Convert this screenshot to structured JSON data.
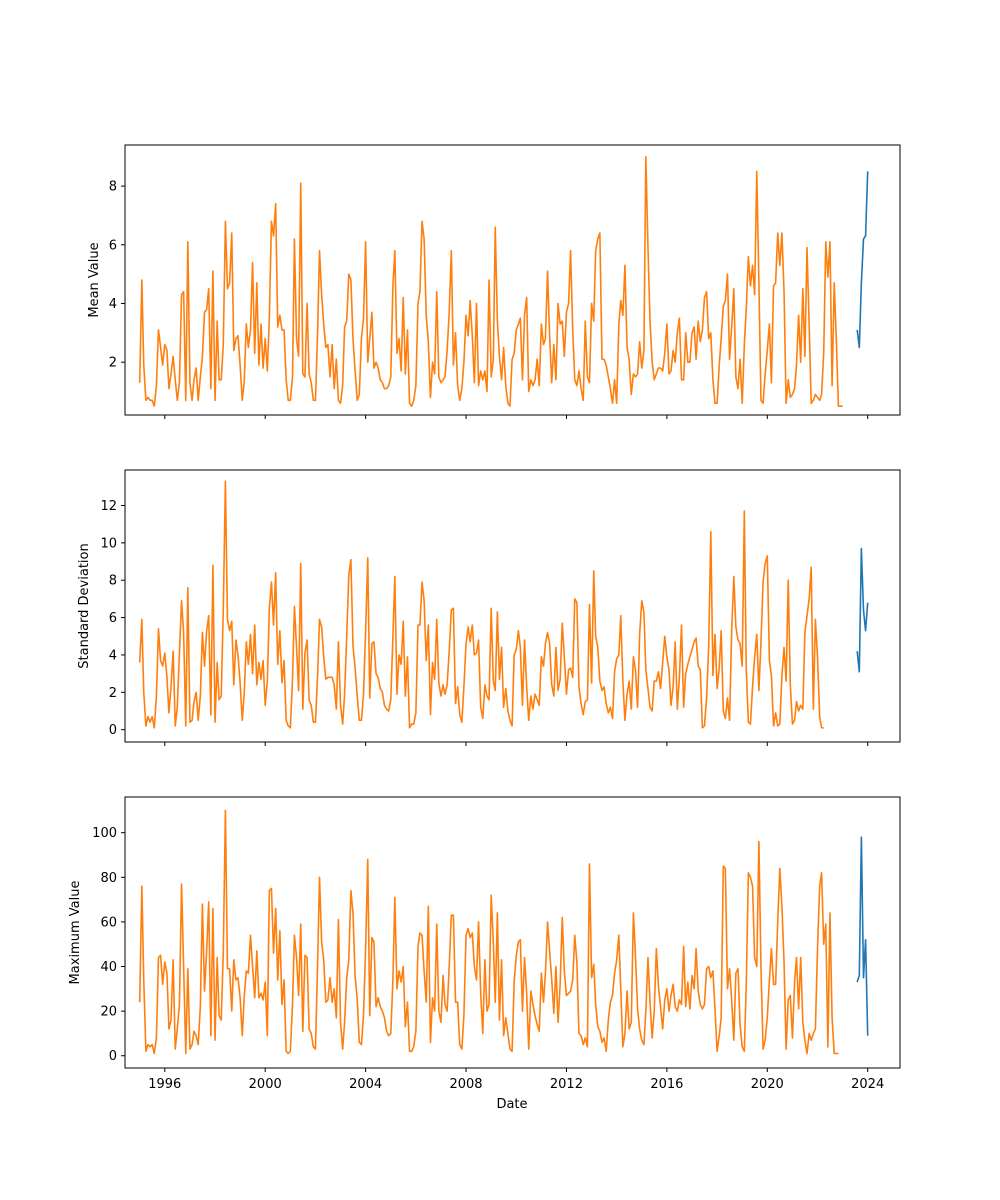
{
  "chart_data": {
    "type": "line",
    "shared_x_label": "Date",
    "x_axis": {
      "type": "date",
      "range": [
        "1994-06-01",
        "2025-04-15"
      ],
      "ticks": [
        "1996",
        "2000",
        "2004",
        "2008",
        "2012",
        "2016",
        "2020",
        "2024"
      ]
    },
    "colors": {
      "history": "#ff7f0e",
      "forecast": "#1f77b4"
    },
    "grid": false,
    "history_start": "1995-01",
    "history_frequency": "monthly",
    "forecast_dates": [
      "2023-08",
      "2023-09",
      "2023-10",
      "2023-11",
      "2023-12",
      "2024-01"
    ],
    "panels": [
      {
        "ylabel": "Mean Value",
        "ylim": [
          0.2,
          9.4
        ],
        "yticks": [
          "2",
          "4",
          "6",
          "8"
        ],
        "history_values": [
          1.3,
          4.8,
          1.9,
          0.7,
          0.8,
          0.7,
          0.7,
          0.5,
          1.2,
          3.1,
          2.5,
          1.9,
          2.6,
          2.4,
          1.1,
          1.6,
          2.2,
          1.4,
          0.7,
          1.3,
          4.3,
          4.4,
          0.7,
          6.1,
          1.3,
          0.7,
          1.4,
          1.8,
          0.7,
          1.5,
          2.2,
          3.7,
          3.8,
          4.5,
          1.1,
          5.1,
          0.7,
          3.4,
          1.4,
          1.4,
          2.6,
          6.8,
          4.5,
          4.7,
          6.4,
          2.4,
          2.8,
          2.9,
          1.9,
          0.7,
          1.3,
          3.3,
          2.5,
          3.1,
          5.4,
          2.3,
          4.7,
          1.9,
          3.3,
          1.8,
          2.8,
          1.7,
          3.5,
          6.8,
          6.3,
          7.4,
          3.2,
          3.6,
          3.1,
          3.1,
          1.4,
          0.7,
          0.7,
          1.5,
          6.2,
          2.8,
          2.2,
          8.1,
          1.6,
          1.5,
          4.0,
          1.6,
          1.3,
          0.7,
          0.7,
          3.0,
          5.8,
          4.3,
          3.3,
          2.5,
          2.6,
          1.5,
          2.6,
          1.1,
          2.1,
          0.7,
          0.6,
          1.2,
          3.2,
          3.4,
          5.0,
          4.8,
          2.8,
          1.7,
          0.7,
          0.9,
          2.8,
          3.5,
          6.1,
          2.0,
          2.8,
          3.7,
          1.8,
          2.0,
          1.8,
          1.4,
          1.3,
          1.1,
          1.1,
          1.2,
          1.5,
          4.6,
          5.8,
          2.3,
          2.8,
          1.7,
          4.2,
          1.6,
          3.1,
          0.6,
          0.5,
          0.7,
          1.2,
          4.0,
          4.4,
          6.8,
          6.2,
          3.6,
          2.7,
          0.8,
          2.0,
          1.6,
          4.4,
          1.5,
          1.3,
          1.4,
          1.5,
          2.4,
          3.7,
          5.8,
          1.9,
          3.0,
          1.2,
          0.7,
          1.1,
          2.0,
          3.6,
          2.9,
          4.1,
          2.9,
          1.3,
          4.0,
          1.2,
          1.7,
          1.4,
          1.7,
          1.0,
          4.8,
          1.5,
          2.1,
          6.6,
          3.4,
          2.2,
          1.4,
          2.5,
          1.2,
          0.6,
          0.5,
          2.1,
          2.3,
          3.1,
          3.3,
          3.5,
          1.4,
          3.6,
          4.2,
          1.0,
          1.4,
          1.2,
          1.4,
          2.1,
          1.2,
          3.3,
          2.6,
          2.8,
          5.1,
          2.9,
          1.3,
          2.6,
          1.4,
          4.0,
          3.3,
          3.4,
          2.2,
          3.7,
          4.0,
          5.8,
          3.1,
          1.4,
          1.2,
          1.7,
          1.1,
          0.7,
          3.4,
          1.5,
          1.3,
          4.0,
          3.4,
          5.8,
          6.2,
          6.4,
          2.1,
          2.1,
          1.9,
          1.5,
          1.1,
          0.6,
          1.4,
          0.6,
          3.3,
          4.1,
          3.6,
          5.3,
          2.5,
          2.1,
          0.9,
          1.6,
          1.5,
          1.6,
          2.7,
          1.8,
          2.4,
          9.0,
          5.9,
          3.4,
          2.0,
          1.4,
          1.6,
          1.8,
          1.8,
          1.7,
          2.3,
          3.3,
          1.6,
          1.7,
          2.4,
          2.0,
          3.0,
          3.5,
          1.4,
          1.4,
          3.0,
          2.0,
          2.0,
          3.0,
          3.2,
          2.1,
          3.4,
          2.7,
          3.1,
          4.2,
          4.4,
          2.8,
          3.0,
          1.4,
          0.6,
          0.6,
          1.9,
          2.8,
          3.9,
          4.1,
          5.0,
          2.1,
          3.2,
          4.5,
          1.5,
          1.1,
          2.1,
          0.6,
          2.6,
          3.8,
          5.6,
          4.6,
          5.3,
          4.3,
          8.5,
          4.7,
          0.7,
          0.6,
          1.6,
          2.4,
          3.3,
          1.3,
          4.6,
          4.7,
          6.4,
          5.3,
          6.4,
          4.4,
          0.6,
          1.4,
          0.8,
          0.9,
          1.1,
          1.9,
          3.6,
          2.0,
          4.5,
          2.2,
          5.9,
          3.3,
          0.6,
          0.7,
          0.9,
          0.8,
          0.7,
          0.9,
          2.3,
          6.1,
          4.9,
          6.1,
          1.2,
          4.7,
          2.8,
          0.5,
          0.5,
          0.5
        ],
        "forecast_values": [
          3.1,
          2.5,
          4.7,
          6.2,
          6.3,
          8.5
        ]
      },
      {
        "ylabel": "Standard Deviation",
        "ylim": [
          -0.66,
          13.9
        ],
        "yticks": [
          "0",
          "2",
          "4",
          "6",
          "8",
          "10",
          "12"
        ],
        "history_values": [
          3.6,
          5.9,
          2.0,
          0.2,
          0.7,
          0.4,
          0.7,
          0.1,
          1.8,
          5.4,
          3.7,
          3.4,
          4.1,
          2.8,
          0.9,
          2.3,
          4.2,
          0.2,
          1.2,
          4.1,
          6.9,
          5.2,
          0.2,
          7.6,
          0.4,
          0.5,
          1.5,
          2.0,
          0.5,
          1.8,
          5.2,
          3.4,
          5.3,
          6.1,
          0.8,
          8.8,
          0.4,
          3.6,
          1.6,
          1.8,
          6.4,
          13.3,
          5.9,
          5.3,
          5.8,
          2.4,
          4.8,
          4.0,
          2.5,
          0.5,
          1.9,
          4.7,
          3.5,
          5.1,
          3.0,
          5.6,
          2.4,
          3.6,
          2.7,
          3.7,
          1.3,
          2.6,
          6.5,
          7.9,
          5.6,
          8.4,
          3.5,
          5.3,
          2.5,
          3.7,
          0.5,
          0.2,
          0.1,
          2.7,
          6.6,
          4.4,
          2.1,
          8.9,
          1.1,
          4.1,
          4.8,
          1.6,
          1.3,
          0.4,
          0.4,
          2.9,
          5.9,
          5.5,
          3.9,
          2.7,
          2.8,
          2.8,
          2.8,
          2.4,
          1.1,
          4.7,
          1.3,
          0.3,
          1.9,
          5.0,
          8.3,
          9.1,
          4.5,
          3.3,
          1.8,
          0.5,
          0.5,
          1.9,
          5.3,
          9.2,
          1.7,
          4.6,
          4.7,
          3.0,
          2.8,
          2.2,
          2.0,
          1.3,
          1.1,
          1.0,
          1.6,
          5.0,
          8.2,
          1.9,
          4.0,
          3.5,
          5.8,
          1.8,
          3.9,
          0.1,
          0.3,
          0.3,
          0.9,
          5.6,
          5.6,
          7.9,
          6.9,
          3.7,
          5.6,
          0.8,
          3.6,
          2.7,
          5.9,
          2.5,
          1.8,
          2.4,
          1.9,
          2.4,
          4.2,
          6.4,
          6.5,
          1.4,
          2.3,
          0.8,
          0.4,
          2.3,
          4.6,
          5.5,
          4.7,
          5.6,
          4.0,
          4.1,
          4.8,
          1.2,
          0.6,
          2.4,
          1.8,
          1.6,
          6.5,
          2.6,
          2.1,
          6.3,
          2.7,
          4.4,
          1.2,
          2.2,
          1.0,
          0.5,
          0.2,
          4.0,
          4.3,
          5.3,
          4.4,
          1.3,
          4.8,
          2.3,
          0.5,
          1.8,
          1.1,
          1.9,
          1.6,
          1.3,
          3.9,
          3.4,
          4.6,
          5.2,
          4.6,
          2.4,
          1.8,
          4.4,
          2.1,
          2.7,
          5.7,
          3.9,
          1.9,
          3.2,
          3.3,
          2.8,
          7.0,
          6.8,
          2.3,
          1.4,
          0.8,
          1.5,
          1.6,
          6.7,
          2.5,
          8.5,
          5.0,
          4.4,
          2.6,
          2.1,
          2.3,
          1.4,
          0.9,
          1.2,
          0.6,
          3.1,
          3.8,
          4.0,
          6.1,
          2.6,
          0.5,
          1.9,
          2.6,
          1.1,
          3.9,
          3.2,
          1.2,
          5.1,
          6.9,
          6.3,
          3.2,
          2.2,
          1.2,
          1.0,
          2.6,
          2.6,
          3.1,
          2.2,
          3.6,
          5.0,
          3.9,
          3.2,
          1.3,
          2.3,
          4.7,
          1.1,
          2.8,
          5.6,
          1.2,
          3.0,
          3.5,
          3.9,
          4.3,
          4.7,
          4.9,
          3.4,
          3.2,
          0.1,
          0.2,
          1.7,
          4.5,
          10.6,
          2.9,
          5.1,
          2.2,
          3.3,
          5.3,
          1.0,
          0.6,
          1.7,
          0.5,
          5.3,
          8.2,
          5.5,
          4.8,
          4.6,
          3.4,
          11.7,
          3.2,
          0.4,
          0.3,
          2.3,
          3.9,
          5.1,
          2.1,
          4.7,
          7.9,
          8.9,
          9.3,
          3.7,
          2.9,
          0.2,
          0.9,
          0.2,
          0.3,
          2.9,
          4.4,
          2.6,
          8.0,
          2.4,
          0.3,
          0.5,
          1.5,
          1.0,
          1.3,
          1.1,
          5.2,
          6.1,
          7.0,
          8.7,
          1.1,
          5.9,
          3.9,
          0.7,
          0.1,
          0.1
        ],
        "forecast_values": [
          4.2,
          3.1,
          9.7,
          6.4,
          5.3,
          6.8
        ]
      },
      {
        "ylabel": "Maximum Value",
        "ylim": [
          -5.5,
          116
        ],
        "yticks": [
          "0",
          "20",
          "40",
          "60",
          "80",
          "100"
        ],
        "history_values": [
          24,
          76,
          34,
          2,
          5,
          4,
          5,
          1,
          8,
          44,
          45,
          32,
          42,
          37,
          12,
          16,
          43,
          3,
          12,
          23,
          77,
          40,
          1,
          39,
          3,
          5,
          11,
          9,
          5,
          22,
          68,
          29,
          47,
          69,
          9,
          66,
          7,
          44,
          18,
          16,
          46,
          110,
          39,
          39,
          20,
          43,
          34,
          35,
          26,
          9,
          26,
          38,
          37,
          54,
          40,
          26,
          47,
          26,
          28,
          25,
          33,
          9,
          74,
          75,
          46,
          66,
          34,
          56,
          23,
          34,
          2,
          1,
          2,
          23,
          54,
          44,
          27,
          59,
          11,
          45,
          44,
          12,
          10,
          4,
          3,
          41,
          80,
          51,
          43,
          24,
          25,
          35,
          24,
          30,
          17,
          61,
          15,
          3,
          15,
          35,
          43,
          74,
          64,
          36,
          25,
          6,
          5,
          18,
          48,
          88,
          18,
          53,
          51,
          22,
          26,
          22,
          20,
          17,
          11,
          9,
          10,
          34,
          71,
          30,
          38,
          33,
          40,
          13,
          24,
          2,
          2,
          4,
          11,
          49,
          55,
          54,
          38,
          24,
          67,
          6,
          26,
          20,
          59,
          20,
          15,
          36,
          23,
          20,
          40,
          63,
          63,
          24,
          24,
          5,
          3,
          18,
          54,
          57,
          53,
          55,
          40,
          34,
          60,
          28,
          10,
          43,
          20,
          23,
          72,
          51,
          24,
          64,
          16,
          43,
          9,
          17,
          10,
          3,
          2,
          33,
          45,
          51,
          52,
          20,
          44,
          28,
          3,
          29,
          23,
          18,
          14,
          11,
          37,
          24,
          37,
          60,
          47,
          34,
          19,
          40,
          15,
          32,
          62,
          38,
          27,
          28,
          29,
          34,
          54,
          42,
          10,
          9,
          5,
          8,
          4,
          86,
          35,
          41,
          23,
          13,
          11,
          6,
          8,
          2,
          16,
          24,
          27,
          37,
          43,
          54,
          30,
          4,
          10,
          29,
          12,
          15,
          64,
          45,
          21,
          12,
          7,
          5,
          20,
          44,
          24,
          8,
          20,
          48,
          31,
          22,
          12,
          25,
          30,
          20,
          27,
          32,
          22,
          20,
          25,
          23,
          49,
          22,
          33,
          21,
          36,
          30,
          48,
          29,
          23,
          21,
          23,
          39,
          40,
          35,
          38,
          21,
          2,
          9,
          17,
          85,
          84,
          30,
          39,
          25,
          7,
          37,
          39,
          14,
          4,
          2,
          32,
          82,
          80,
          76,
          44,
          40,
          96,
          40,
          3,
          7,
          17,
          34,
          48,
          32,
          32,
          60,
          84,
          67,
          42,
          3,
          25,
          27,
          8,
          33,
          44,
          21,
          44,
          15,
          7,
          1,
          10,
          7,
          10,
          12,
          48,
          76,
          82,
          50,
          59,
          4,
          64,
          17,
          1,
          1,
          1
        ],
        "forecast_values": [
          33,
          36,
          98,
          35,
          52,
          9
        ]
      }
    ]
  }
}
